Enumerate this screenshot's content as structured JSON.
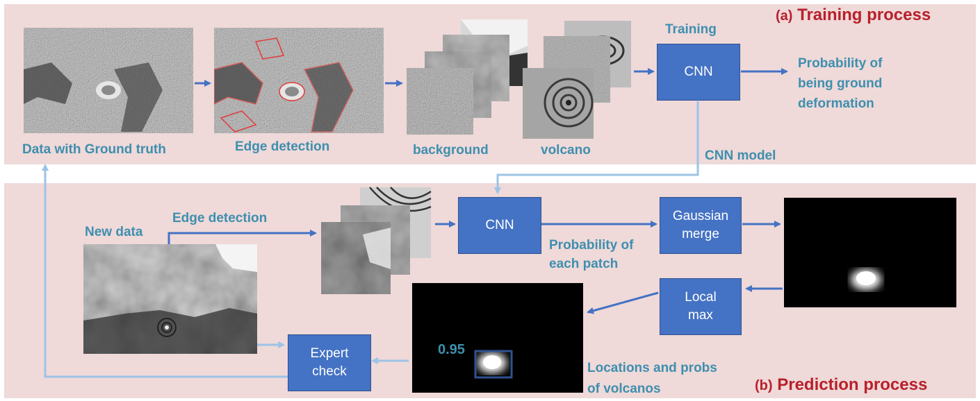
{
  "training": {
    "title_prefix": "(a)",
    "title_text": "Training process",
    "labels": {
      "data_ground_truth": "Data with Ground truth",
      "edge_detection": "Edge detection",
      "background": "background",
      "volcano": "volcano",
      "training": "Training",
      "output": "Probability of\nbeing ground\ndeformation",
      "cnn_model": "CNN model"
    },
    "cnn_box": "CNN"
  },
  "prediction": {
    "title_prefix": "(b)",
    "title_text": "Prediction process",
    "labels": {
      "new_data": "New data",
      "edge_detection": "Edge detection",
      "prob_each_patch": "Probability of\neach patch",
      "locations_probs": "Locations and probs\nof volcanos",
      "score": "0.95"
    },
    "boxes": {
      "cnn": "CNN",
      "gaussian": "Gaussian\nmerge",
      "local_max": "Local\nmax",
      "expert": "Expert\ncheck"
    }
  },
  "colors": {
    "panel_bg": "#efd9d9",
    "box_fill": "#4472c4",
    "arrow_dark": "#4472c4",
    "arrow_light": "#9dc3e6",
    "label_text": "#3e8fae",
    "title_text": "#b8202a"
  }
}
